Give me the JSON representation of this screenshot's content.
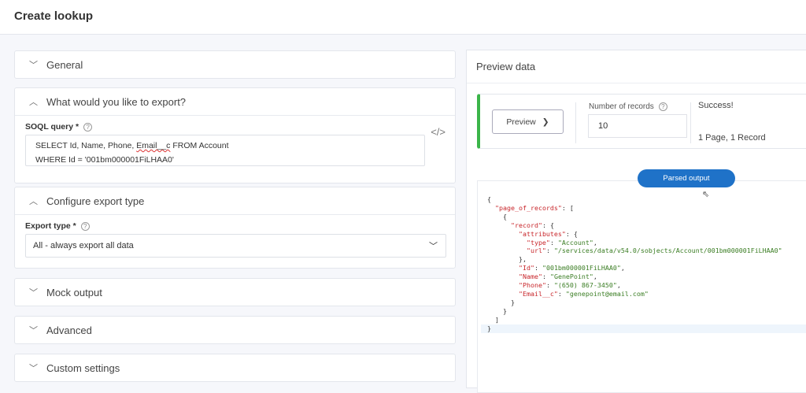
{
  "header": {
    "title": "Create lookup"
  },
  "sections": {
    "general": "General",
    "export": "What would you like to export?",
    "configure": "Configure export type",
    "mock": "Mock output",
    "advanced": "Advanced",
    "custom": "Custom settings"
  },
  "soql": {
    "label": "SOQL query *",
    "line1_pre": "SELECT Id, Name, Phone, ",
    "line1_err": "Email__c",
    "line1_post": " FROM Account",
    "line2": "WHERE Id = '001bm000001FiLHAA0'"
  },
  "export_type": {
    "label": "Export type *",
    "value": "All - always export all data"
  },
  "preview": {
    "title": "Preview data",
    "button": "Preview",
    "num_label": "Number of records",
    "num_value": "10",
    "status": "Success!",
    "summary": "1 Page, 1 Record",
    "status_color": "#3bb54a",
    "tab": "Parsed output"
  },
  "json_lines": [
    {
      "t": "{"
    },
    {
      "t": "  ",
      "k": "\"page_of_records\"",
      "r": ": ["
    },
    {
      "t": "    {"
    },
    {
      "t": "      ",
      "k": "\"record\"",
      "r": ": {"
    },
    {
      "t": "        ",
      "k": "\"attributes\"",
      "r": ": {"
    },
    {
      "t": "          ",
      "k": "\"type\"",
      "r": ": ",
      "v": "\"Account\"",
      "e": ","
    },
    {
      "t": "          ",
      "k": "\"url\"",
      "r": ": ",
      "v": "\"/services/data/v54.0/sobjects/Account/001bm000001FiLHAA0\""
    },
    {
      "t": "        },"
    },
    {
      "t": "        ",
      "k": "\"Id\"",
      "r": ": ",
      "v": "\"001bm000001FiLHAA0\"",
      "e": ","
    },
    {
      "t": "        ",
      "k": "\"Name\"",
      "r": ": ",
      "v": "\"GenePoint\"",
      "e": ","
    },
    {
      "t": "        ",
      "k": "\"Phone\"",
      "r": ": ",
      "v": "\"(650) 867-3450\"",
      "e": ","
    },
    {
      "t": "        ",
      "k": "\"Email__c\"",
      "r": ": ",
      "v": "\"genepoint@email.com\""
    },
    {
      "t": "      }"
    },
    {
      "t": "    }"
    },
    {
      "t": "  ]"
    },
    {
      "t": "}"
    }
  ]
}
